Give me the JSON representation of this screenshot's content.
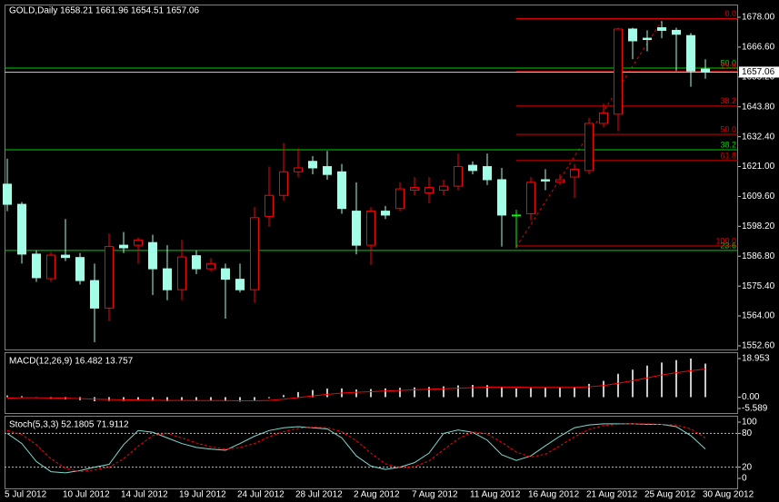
{
  "chart_data": [
    {
      "type": "candlestick",
      "title": "GOLD,Daily  1658.21 1661.96 1654.51 1657.06",
      "categories": [
        "5 Jul 2012",
        null,
        null,
        null,
        "10 Jul 2012",
        null,
        null,
        null,
        "14 Jul 2012",
        null,
        null,
        null,
        "19 Jul 2012",
        null,
        null,
        null,
        "24 Jul 2012",
        null,
        null,
        null,
        "28 Jul 2012",
        null,
        null,
        null,
        "2 Aug 2012",
        null,
        null,
        null,
        "7 Aug 2012",
        null,
        null,
        null,
        "11 Aug 2012",
        null,
        null,
        null,
        "16 Aug 2012",
        null,
        null,
        null,
        "21 Aug 2012",
        null,
        null,
        null,
        "25 Aug 2012",
        null,
        null,
        null,
        "30 Aug 2012"
      ],
      "open": [
        1614.3,
        1606.6,
        1587.6,
        1578.2,
        1587.2,
        1586.3,
        1577.5,
        1567,
        1591,
        1591,
        1592,
        1582,
        1574,
        1587,
        1582,
        1582,
        1578,
        1574,
        1602,
        1610,
        1619,
        1623,
        1621,
        1619,
        1604,
        1591,
        1604,
        1605,
        1612,
        1611,
        1612,
        1613.5,
        1621.5,
        1621,
        1616,
        1602.5,
        1603,
        1616,
        1615,
        1617,
        1619.5,
        1637.5,
        1641,
        1673.5,
        1670,
        1674,
        1673,
        1671,
        1658.21
      ],
      "high": [
        1624,
        1607.5,
        1589,
        1588.5,
        1601,
        1588,
        1584,
        1595.5,
        1596,
        1594,
        1595,
        1591,
        1593,
        1589,
        1586,
        1584,
        1584,
        1605.5,
        1621,
        1630,
        1628,
        1625,
        1627,
        1622,
        1615,
        1605.5,
        1606,
        1615,
        1617,
        1617,
        1616,
        1626,
        1623,
        1626,
        1620.5,
        1604.5,
        1617,
        1620,
        1618,
        1622,
        1639.5,
        1645,
        1674,
        1674,
        1673,
        1676.5,
        1674,
        1672,
        1661.96
      ],
      "low": [
        1604,
        1584,
        1577,
        1577,
        1585,
        1576,
        1554,
        1562,
        1588,
        1584,
        1572,
        1570,
        1570,
        1580,
        1581,
        1563,
        1573,
        1569,
        1598,
        1608,
        1617,
        1618,
        1616,
        1603,
        1587.5,
        1583.5,
        1601,
        1604,
        1610,
        1607,
        1610,
        1612,
        1618,
        1614,
        1590.5,
        1590,
        1600.5,
        1612,
        1614,
        1609,
        1618,
        1636,
        1634.5,
        1662,
        1665,
        1670,
        1657.5,
        1651.5,
        1654.51
      ],
      "close": [
        1606.6,
        1587.6,
        1578.6,
        1587.2,
        1586.3,
        1577.5,
        1567,
        1590.5,
        1590,
        1593,
        1582,
        1574,
        1586.5,
        1582,
        1584,
        1578,
        1574,
        1601.5,
        1610,
        1619,
        1620.5,
        1620.5,
        1618,
        1605,
        1591,
        1604,
        1602.5,
        1612.5,
        1613,
        1613,
        1613.5,
        1621,
        1619.5,
        1616,
        1602.5,
        1602.5,
        1615,
        1615.5,
        1616,
        1620,
        1637.5,
        1641.5,
        1673.5,
        1669,
        1669.5,
        1673,
        1671.5,
        1657.5,
        1657.06
      ],
      "bull_color": "#ff0000",
      "bear_color": "#a0ffe6",
      "doji_color": "#00ff00",
      "ylim": [
        1551.2,
        1682.85
      ],
      "yticks": [
        {
          "value": 1678,
          "label": "1678.00"
        },
        {
          "value": 1666.6,
          "label": "1666.60"
        },
        {
          "value": 1655.2,
          "label": "1655.20"
        },
        {
          "value": 1643.8,
          "label": "1643.80"
        },
        {
          "value": 1632.4,
          "label": "1632.40"
        },
        {
          "value": 1621,
          "label": "1621.00"
        },
        {
          "value": 1609.6,
          "label": "1609.60"
        },
        {
          "value": 1598.2,
          "label": "1598.20"
        },
        {
          "value": 1586.8,
          "label": "1586.80"
        },
        {
          "value": 1575.4,
          "label": "1575.40"
        },
        {
          "value": 1564,
          "label": "1564.00"
        },
        {
          "value": 1552.6,
          "label": "1552.60"
        }
      ],
      "last_price": 1657.06,
      "last_price_color": "#c0c0c0",
      "fibo_red": {
        "color": "#e00000",
        "levels": [
          {
            "ratio": "0.0",
            "price": 1677.5
          },
          {
            "ratio": "23.6",
            "price": 1657.3
          },
          {
            "ratio": "38.2",
            "price": 1644.1
          },
          {
            "ratio": "50.0",
            "price": 1633.3
          },
          {
            "ratio": "61.8",
            "price": 1623.3
          },
          {
            "ratio": "100.0",
            "price": 1590.7
          }
        ]
      },
      "fibo_green": {
        "color": "#00d000",
        "levels": [
          {
            "ratio": "50.0",
            "price": 1658.6
          },
          {
            "ratio": "38.2",
            "price": 1627.4
          },
          {
            "ratio": "23.6",
            "price": 1589
          }
        ]
      }
    },
    {
      "type": "macd",
      "title": "MACD(12,26,9) 16.482 13.757",
      "histogram": {
        "color": "#c8c8c8",
        "values": [
          0.8,
          0.5,
          -0.3,
          -0.8,
          -1.0,
          -1.5,
          -2.0,
          -1.8,
          -1.8,
          -1.6,
          -1.8,
          -2.0,
          -1.8,
          -1.8,
          -1.8,
          -2.0,
          -2.2,
          -1.5,
          -0.5,
          1.0,
          2.5,
          3.5,
          4.2,
          4.3,
          3.8,
          4.0,
          4.3,
          4.6,
          4.8,
          5.0,
          5.3,
          5.8,
          6.0,
          5.9,
          5.0,
          4.3,
          4.5,
          4.6,
          4.7,
          5.0,
          6.5,
          8.0,
          11.5,
          13.5,
          15.5,
          17.0,
          18.2,
          18.953,
          16.482
        ]
      },
      "signal": {
        "color": "#ff0000",
        "values": [
          -0.5,
          -0.3,
          -0.3,
          -0.4,
          -0.5,
          -0.7,
          -1.0,
          -1.2,
          -1.3,
          -1.4,
          -1.5,
          -1.6,
          -1.6,
          -1.7,
          -1.7,
          -1.7,
          -1.8,
          -1.8,
          -1.6,
          -1.0,
          -0.2,
          0.6,
          1.4,
          2.0,
          2.4,
          2.7,
          3.0,
          3.3,
          3.6,
          3.9,
          4.1,
          4.4,
          4.7,
          4.9,
          5.0,
          4.9,
          4.8,
          4.8,
          4.8,
          4.8,
          5.1,
          5.7,
          6.8,
          8.1,
          9.5,
          10.9,
          12.0,
          13.0,
          13.757
        ]
      },
      "ylim": [
        -7.81,
        22.08
      ],
      "yticks": [
        18.953,
        {
          "value": 0,
          "label": "0.00"
        },
        -5.589
      ]
    },
    {
      "type": "stochastic",
      "title": "Stoch(5,3,3) 52.1805 71.9112",
      "main": {
        "color": "#7fd8d0",
        "values": [
          80,
          62,
          30,
          12,
          10,
          14,
          20,
          25,
          60,
          85,
          82,
          72,
          62,
          55,
          52,
          50,
          62,
          75,
          85,
          90,
          92,
          90,
          88,
          72,
          40,
          22,
          16,
          20,
          28,
          45,
          80,
          86,
          82,
          68,
          42,
          32,
          40,
          58,
          75,
          90,
          95,
          97,
          97,
          97,
          96,
          96,
          92,
          76,
          52.1805
        ]
      },
      "signal": {
        "color": "#ff0000",
        "values": [
          85,
          78,
          60,
          35,
          18,
          12,
          15,
          20,
          35,
          57,
          76,
          80,
          72,
          63,
          56,
          52,
          55,
          62,
          74,
          83,
          89,
          91,
          90,
          83,
          67,
          45,
          26,
          19,
          21,
          31,
          51,
          70,
          83,
          79,
          64,
          47,
          38,
          43,
          58,
          74,
          87,
          94,
          96,
          97,
          97,
          96,
          95,
          88,
          71.9112
        ]
      },
      "ylim": [
        -17.7,
        111.3
      ],
      "yticks": [
        0,
        20,
        80,
        100
      ],
      "levels": [
        20,
        80
      ]
    }
  ]
}
